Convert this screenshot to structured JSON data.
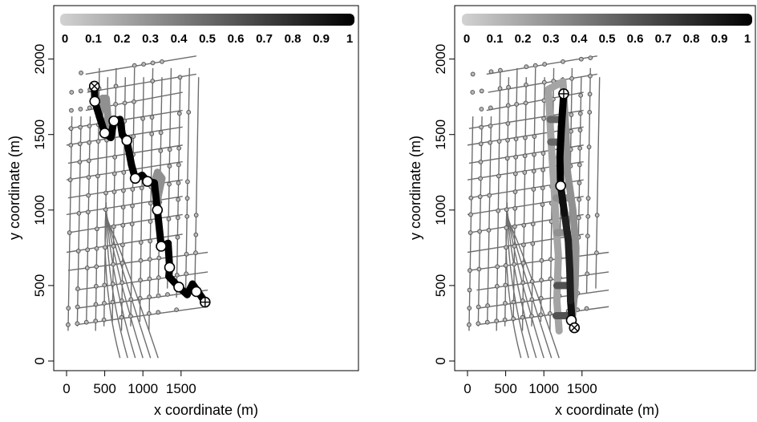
{
  "chart_data": [
    {
      "type": "network-map",
      "xlabel": "x coordinate (m)",
      "ylabel": "y coordinate (m)",
      "xlim": [
        -80,
        1900
      ],
      "ylim": [
        -60,
        2330
      ],
      "xticks": [
        "0",
        "500",
        "1000",
        "1500"
      ],
      "yticks": [
        "0",
        "500",
        "1000",
        "1500",
        "2000"
      ],
      "colorbar": {
        "ticks": [
          "0",
          "0.1",
          "0.2",
          "0.3",
          "0.4",
          "0.5",
          "0.6",
          "0.7",
          "0.8",
          "0.9",
          "1"
        ],
        "range": [
          0,
          1
        ]
      },
      "start_marker": {
        "x": 365,
        "y": 1820
      },
      "end_marker": {
        "x": 1815,
        "y": 390
      },
      "route": [
        {
          "x": 365,
          "y": 1820,
          "v": 1.0
        },
        {
          "x": 370,
          "y": 1720,
          "v": 1.0
        },
        {
          "x": 430,
          "y": 1620,
          "v": 1.0
        },
        {
          "x": 500,
          "y": 1510,
          "v": 1.0
        },
        {
          "x": 580,
          "y": 1480,
          "v": 1.0
        },
        {
          "x": 620,
          "y": 1590,
          "v": 1.0
        },
        {
          "x": 700,
          "y": 1600,
          "v": 1.0
        },
        {
          "x": 730,
          "y": 1500,
          "v": 1.0
        },
        {
          "x": 790,
          "y": 1460,
          "v": 1.0
        },
        {
          "x": 850,
          "y": 1300,
          "v": 1.0
        },
        {
          "x": 900,
          "y": 1210,
          "v": 1.0
        },
        {
          "x": 990,
          "y": 1230,
          "v": 1.0
        },
        {
          "x": 1060,
          "y": 1190,
          "v": 1.0
        },
        {
          "x": 1150,
          "y": 1180,
          "v": 1.0
        },
        {
          "x": 1190,
          "y": 1000,
          "v": 1.0
        },
        {
          "x": 1240,
          "y": 760,
          "v": 1.0
        },
        {
          "x": 1330,
          "y": 780,
          "v": 1.0
        },
        {
          "x": 1350,
          "y": 620,
          "v": 1.0
        },
        {
          "x": 1340,
          "y": 560,
          "v": 1.0
        },
        {
          "x": 1470,
          "y": 490,
          "v": 1.0
        },
        {
          "x": 1580,
          "y": 440,
          "v": 1.0
        },
        {
          "x": 1650,
          "y": 510,
          "v": 1.0
        },
        {
          "x": 1720,
          "y": 460,
          "v": 1.0
        },
        {
          "x": 1815,
          "y": 390,
          "v": 1.0
        }
      ],
      "alternatives": [
        {
          "v": 0.3,
          "points": [
            [
              430,
              1620
            ],
            [
              470,
              1740
            ],
            [
              520,
              1740
            ],
            [
              540,
              1620
            ],
            [
              500,
              1510
            ]
          ]
        },
        {
          "v": 0.3,
          "points": [
            [
              1150,
              1180
            ],
            [
              1190,
              1250
            ],
            [
              1250,
              1210
            ],
            [
              1200,
              1090
            ],
            [
              1190,
              1000
            ]
          ]
        }
      ],
      "stops": [
        {
          "x": 370,
          "y": 1720
        },
        {
          "x": 500,
          "y": 1510
        },
        {
          "x": 620,
          "y": 1590
        },
        {
          "x": 790,
          "y": 1460
        },
        {
          "x": 900,
          "y": 1210
        },
        {
          "x": 1060,
          "y": 1190
        },
        {
          "x": 1190,
          "y": 1000
        },
        {
          "x": 1240,
          "y": 760
        },
        {
          "x": 1350,
          "y": 620
        },
        {
          "x": 1470,
          "y": 490
        },
        {
          "x": 1700,
          "y": 460
        }
      ]
    },
    {
      "type": "network-map",
      "xlabel": "x coordinate (m)",
      "ylabel": "y coordinate (m)",
      "xlim": [
        -80,
        1900
      ],
      "ylim": [
        -60,
        2330
      ],
      "xticks": [
        "0",
        "500",
        "1000",
        "1500"
      ],
      "yticks": [
        "0",
        "500",
        "1000",
        "1500",
        "2000"
      ],
      "colorbar": {
        "ticks": [
          "0",
          "0.1",
          "0.2",
          "0.3",
          "0.4",
          "0.5",
          "0.6",
          "0.7",
          "0.8",
          "0.9",
          "1"
        ],
        "range": [
          0,
          1
        ]
      },
      "start_marker": {
        "x": 1400,
        "y": 220
      },
      "end_marker": {
        "x": 1260,
        "y": 1770
      },
      "route": [
        {
          "x": 1400,
          "y": 220,
          "v": 1.0
        },
        {
          "x": 1370,
          "y": 270,
          "v": 1.0
        },
        {
          "x": 1350,
          "y": 400,
          "v": 0.85
        },
        {
          "x": 1340,
          "y": 600,
          "v": 0.85
        },
        {
          "x": 1320,
          "y": 800,
          "v": 0.85
        },
        {
          "x": 1270,
          "y": 980,
          "v": 0.85
        },
        {
          "x": 1220,
          "y": 1160,
          "v": 1.0
        },
        {
          "x": 1210,
          "y": 1350,
          "v": 1.0
        },
        {
          "x": 1230,
          "y": 1550,
          "v": 1.0
        },
        {
          "x": 1260,
          "y": 1770,
          "v": 1.0
        }
      ],
      "alternatives": [
        {
          "v": 0.2,
          "points": [
            [
              1200,
              200
            ],
            [
              1170,
              400
            ],
            [
              1190,
              700
            ],
            [
              1160,
              900
            ],
            [
              1140,
              1100
            ],
            [
              1120,
              1250
            ],
            [
              1090,
              1500
            ],
            [
              1060,
              1800
            ],
            [
              1250,
              1850
            ],
            [
              1260,
              1770
            ]
          ]
        },
        {
          "v": 0.3,
          "points": [
            [
              1370,
              270
            ],
            [
              1410,
              500
            ],
            [
              1420,
              750
            ],
            [
              1380,
              1000
            ],
            [
              1310,
              1250
            ],
            [
              1290,
              1500
            ],
            [
              1260,
              1770
            ]
          ]
        },
        {
          "v": 0.5,
          "points": [
            [
              1190,
              1450
            ],
            [
              1090,
              1450
            ]
          ]
        },
        {
          "v": 0.5,
          "points": [
            [
              1230,
              1600
            ],
            [
              1080,
              1600
            ]
          ]
        },
        {
          "v": 0.6,
          "points": [
            [
              1160,
              300
            ],
            [
              1320,
              300
            ]
          ]
        },
        {
          "v": 0.6,
          "points": [
            [
              1170,
              500
            ],
            [
              1340,
              500
            ]
          ]
        },
        {
          "v": 0.3,
          "points": [
            [
              1160,
              1080
            ],
            [
              1300,
              1080
            ]
          ]
        },
        {
          "v": 0.3,
          "points": [
            [
              1170,
              850
            ],
            [
              1310,
              850
            ]
          ]
        }
      ],
      "stops": [
        {
          "x": 1220,
          "y": 1160
        },
        {
          "x": 1360,
          "y": 270
        }
      ]
    }
  ]
}
